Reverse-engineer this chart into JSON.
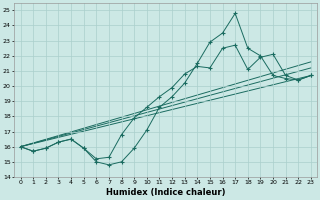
{
  "xlabel": "Humidex (Indice chaleur)",
  "bg_color": "#cce8e5",
  "grid_color": "#aacfcc",
  "line_color": "#1a6b60",
  "xlim": [
    -0.5,
    23.5
  ],
  "ylim": [
    14,
    25.5
  ],
  "curve1_x": [
    0,
    1,
    2,
    3,
    4,
    5,
    6,
    7,
    8,
    9,
    10,
    11,
    12,
    13,
    14,
    15,
    16,
    17,
    18,
    19,
    20,
    21,
    22,
    23
  ],
  "curve1_y": [
    16.0,
    15.7,
    15.9,
    16.3,
    16.5,
    15.9,
    15.0,
    14.8,
    15.0,
    15.9,
    17.1,
    18.6,
    19.3,
    20.2,
    21.5,
    22.9,
    23.5,
    24.8,
    22.5,
    22.0,
    20.7,
    20.5,
    20.4,
    20.7
  ],
  "curve2_x": [
    0,
    1,
    2,
    3,
    4,
    5,
    6,
    7,
    8,
    9,
    10,
    11,
    12,
    13,
    14,
    15,
    16,
    17,
    18,
    19,
    20,
    21,
    22,
    23
  ],
  "curve2_y": [
    16.0,
    15.7,
    15.9,
    16.3,
    16.5,
    15.9,
    15.2,
    15.3,
    16.8,
    17.9,
    18.6,
    19.3,
    19.9,
    20.8,
    21.3,
    21.2,
    22.5,
    22.7,
    21.1,
    21.9,
    22.1,
    20.7,
    20.4,
    20.7
  ],
  "line1_x": [
    0,
    23
  ],
  "line1_y": [
    16.0,
    20.7
  ],
  "line2_x": [
    0,
    23
  ],
  "line2_y": [
    16.0,
    21.2
  ],
  "line3_x": [
    0,
    23
  ],
  "line3_y": [
    16.0,
    21.6
  ]
}
